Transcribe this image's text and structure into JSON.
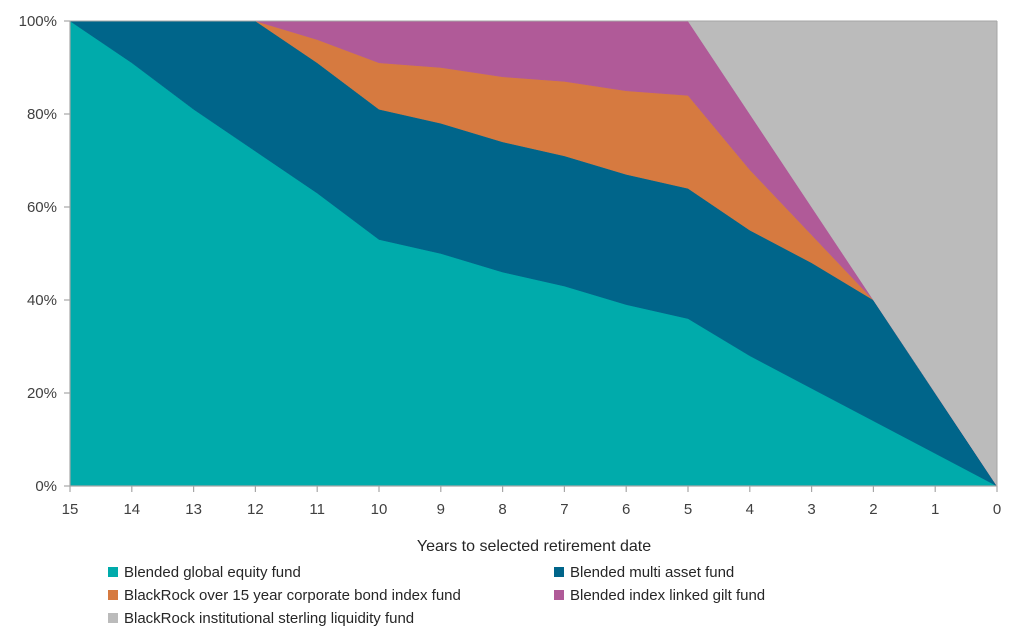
{
  "chart_data": {
    "type": "area",
    "stacked": true,
    "percent": true,
    "title": "",
    "xlabel": "Years to selected retirement date",
    "ylabel": "",
    "x": [
      15,
      14,
      13,
      12,
      11,
      10,
      9,
      8,
      7,
      6,
      5,
      4,
      3,
      2,
      1,
      0
    ],
    "x_tick_labels": [
      "15",
      "14",
      "13",
      "12",
      "11",
      "10",
      "9",
      "8",
      "7",
      "6",
      "5",
      "4",
      "3",
      "2",
      "1",
      "0"
    ],
    "y_tick_labels": [
      "0%",
      "20%",
      "40%",
      "60%",
      "80%",
      "100%"
    ],
    "y_ticks": [
      0,
      20,
      40,
      60,
      80,
      100
    ],
    "ylim": [
      0,
      100
    ],
    "x_reversed": true,
    "grid": false,
    "legend_position": "bottom",
    "series": [
      {
        "name": "Blended global equity fund",
        "color": "#00ABAB",
        "values": [
          100,
          91,
          81,
          72,
          63,
          53,
          50,
          46,
          43,
          39,
          36,
          28,
          21,
          14,
          7,
          0
        ]
      },
      {
        "name": "Blended multi asset fund",
        "color": "#00658A",
        "values": [
          0,
          9,
          19,
          28,
          28,
          28,
          28,
          28,
          28,
          28,
          28,
          27,
          27,
          26,
          13,
          0
        ]
      },
      {
        "name": "BlackRock over 15 year corporate bond index fund",
        "color": "#D67A40",
        "values": [
          0,
          0,
          0,
          0,
          5,
          10,
          12,
          14,
          16,
          18,
          20,
          13,
          6,
          0,
          0,
          0
        ]
      },
      {
        "name": "Blended index linked gilt fund",
        "color": "#B05A98",
        "values": [
          0,
          0,
          0,
          0,
          4,
          9,
          10,
          12,
          13,
          15,
          16,
          12,
          6,
          0,
          0,
          0
        ]
      },
      {
        "name": "BlackRock institutional sterling liquidity fund",
        "color": "#BBBBBB",
        "values": [
          0,
          0,
          0,
          0,
          0,
          0,
          0,
          0,
          0,
          0,
          0,
          20,
          40,
          60,
          80,
          100
        ]
      }
    ]
  },
  "legend": {
    "items": [
      {
        "label": "Blended global equity fund",
        "color": "#00ABAB"
      },
      {
        "label": "Blended multi asset fund",
        "color": "#00658A"
      },
      {
        "label": "BlackRock over 15 year corporate bond index fund",
        "color": "#D67A40"
      },
      {
        "label": "Blended index linked gilt fund",
        "color": "#B05A98"
      },
      {
        "label": "BlackRock institutional sterling liquidity fund",
        "color": "#BBBBBB"
      }
    ]
  },
  "axis_color": "#A6A6A6"
}
